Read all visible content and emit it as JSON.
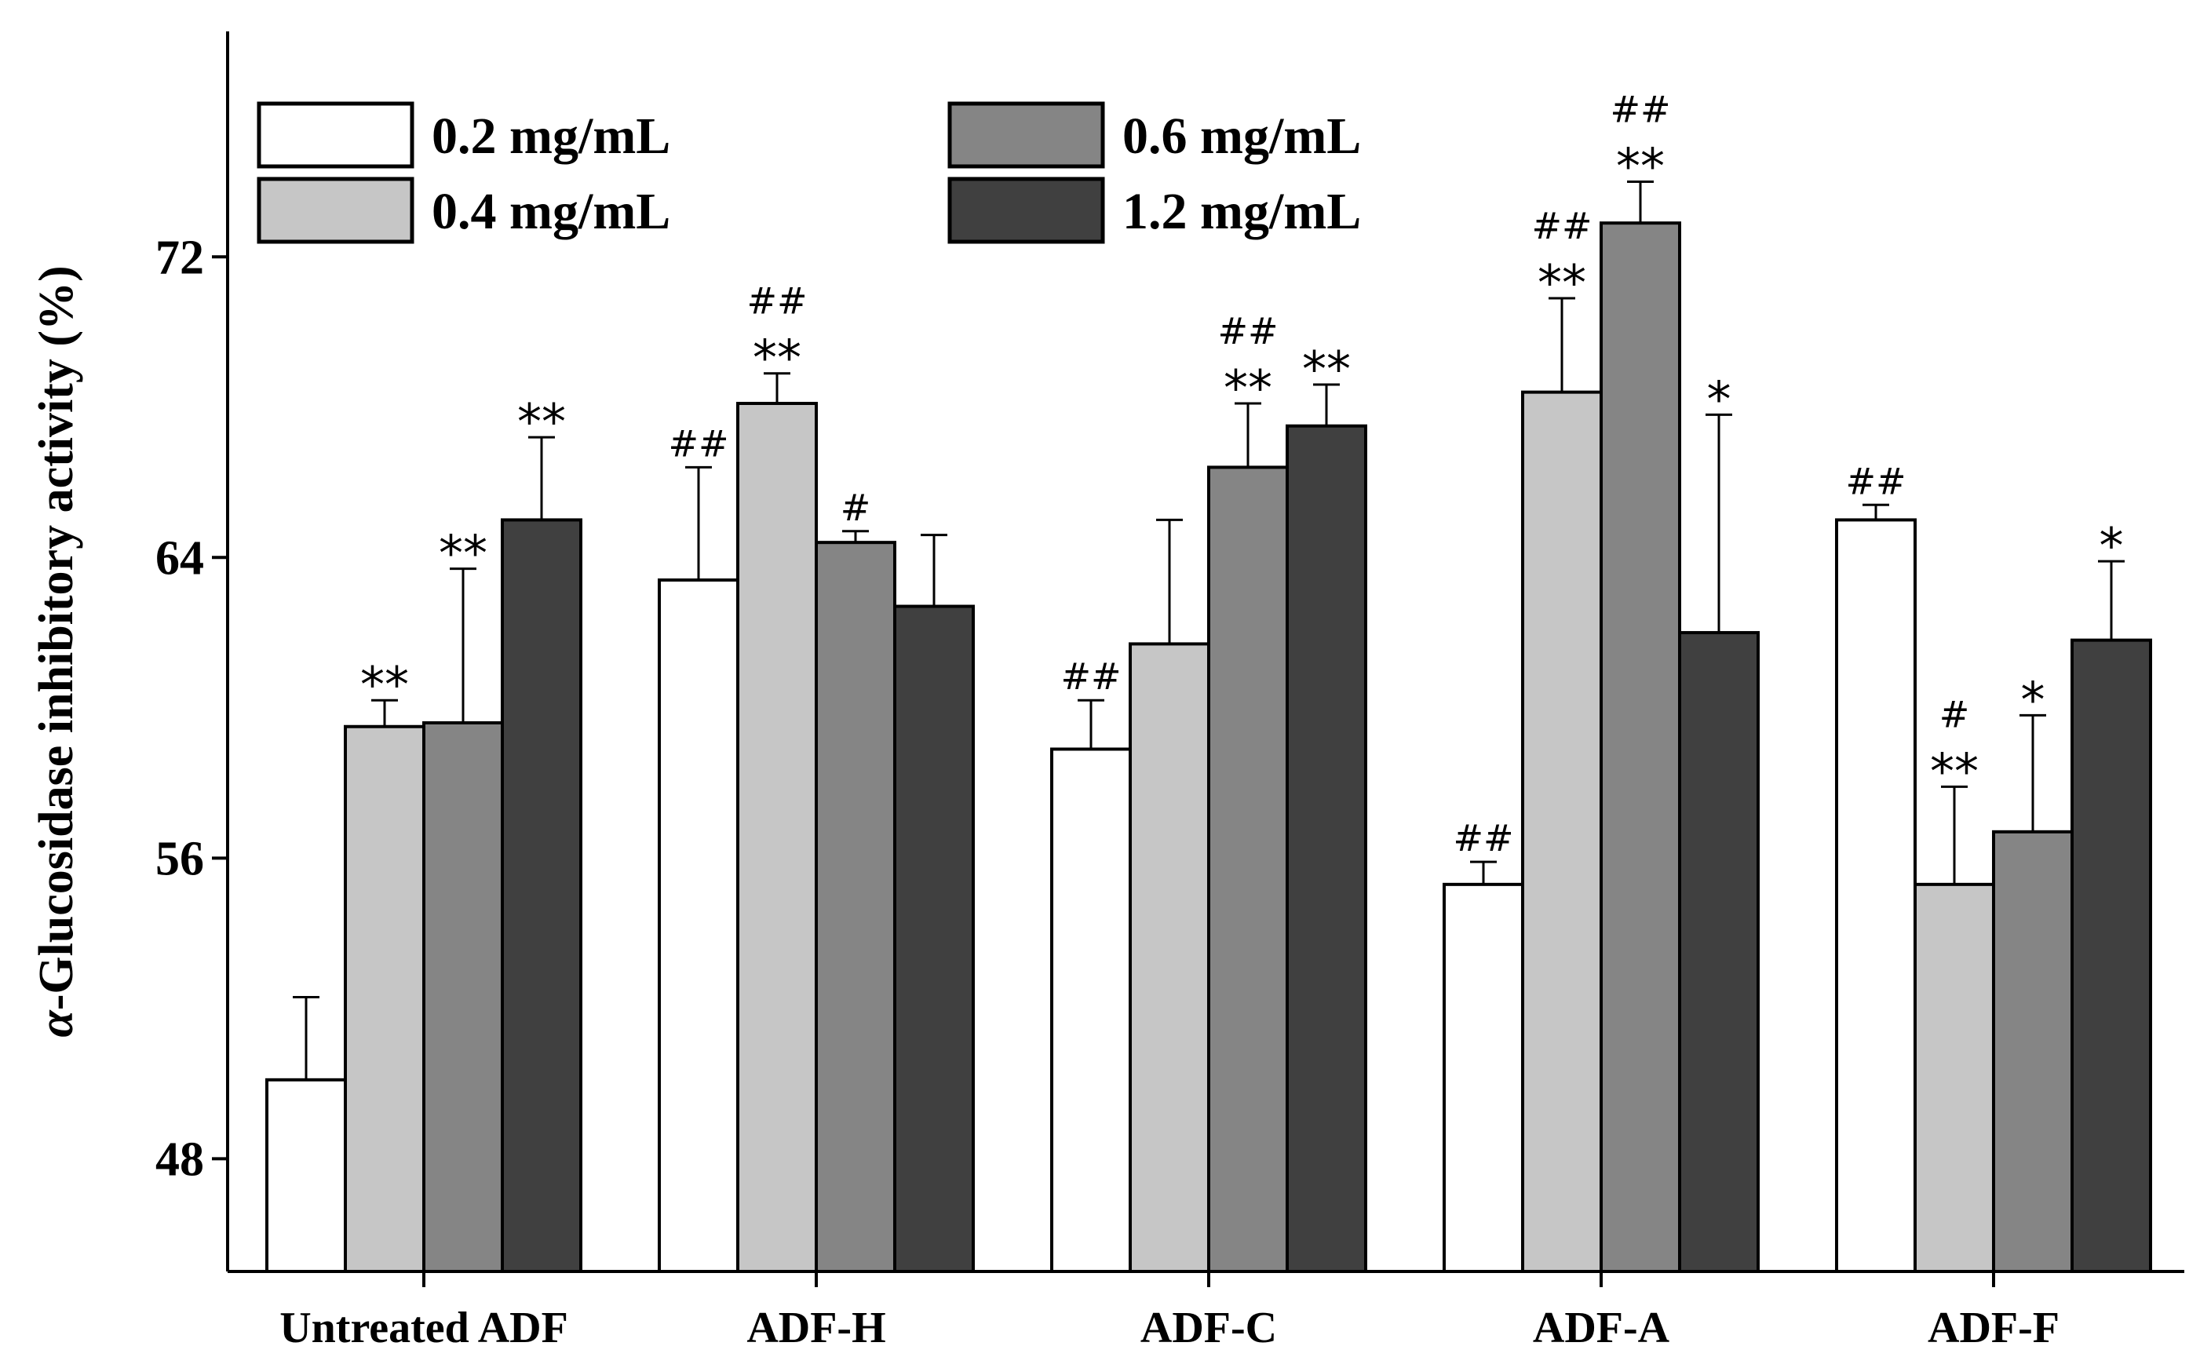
{
  "chart_data": {
    "type": "bar",
    "ylabel_prefix": "α",
    "ylabel_rest": "-Glucosidase inhibitory activity (%)",
    "ylim": [
      45,
      78
    ],
    "yticks": [
      48,
      56,
      64,
      72
    ],
    "categories": [
      "Untreated ADF",
      "ADF-H",
      "ADF-C",
      "ADF-A",
      "ADF-F"
    ],
    "legend_placement": "top-left",
    "series": [
      {
        "name": "0.2 mg/mL",
        "color": "#ffffff",
        "values": [
          50.1,
          63.4,
          58.9,
          55.3,
          65.0
        ],
        "errors": [
          2.2,
          3.0,
          1.3,
          0.6,
          0.4
        ],
        "sig_star": [
          "",
          "",
          "",
          "",
          ""
        ],
        "sig_hash": [
          "",
          "##",
          "##",
          "##",
          "##"
        ]
      },
      {
        "name": "0.4 mg/mL",
        "color": "#c6c6c6",
        "values": [
          59.5,
          68.1,
          61.7,
          68.4,
          55.3
        ],
        "errors": [
          0.7,
          0.8,
          3.3,
          2.5,
          2.6
        ],
        "sig_star": [
          "**",
          "**",
          "",
          "**",
          "**"
        ],
        "sig_hash": [
          "",
          "##",
          "",
          "##",
          "#"
        ]
      },
      {
        "name": "0.6 mg/mL",
        "color": "#858585",
        "values": [
          59.6,
          64.4,
          66.4,
          72.9,
          56.7
        ],
        "errors": [
          4.1,
          0.3,
          1.7,
          1.1,
          3.1
        ],
        "sig_star": [
          "**",
          "",
          "**",
          "**",
          "*"
        ],
        "sig_hash": [
          "",
          "#",
          "##",
          "##",
          ""
        ]
      },
      {
        "name": "1.2 mg/mL",
        "color": "#404040",
        "values": [
          65.0,
          62.7,
          67.5,
          62.0,
          61.8
        ],
        "errors": [
          2.2,
          1.9,
          1.1,
          5.8,
          2.1
        ],
        "sig_star": [
          "**",
          "",
          "**",
          "*",
          "*"
        ],
        "sig_hash": [
          "",
          "",
          "",
          "",
          ""
        ]
      }
    ]
  }
}
